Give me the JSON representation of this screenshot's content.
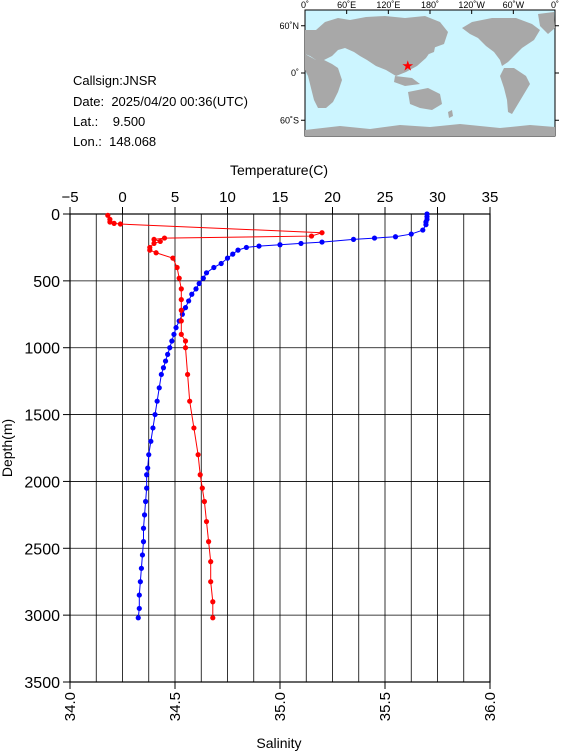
{
  "station": {
    "callsign_label": "Callsign:",
    "callsign": "JNSR",
    "date_label": "Date:",
    "date": "2025/04/20 00:36(UTC)",
    "lat_label": "Lat.:",
    "lat": "9.500",
    "lon_label": "Lon.:",
    "lon": "148.068"
  },
  "map": {
    "lon_ticks": [
      "0˚",
      "60˚E",
      "120˚E",
      "180˚",
      "120˚W",
      "60˚W",
      "0˚"
    ],
    "lat_ticks": [
      "60˚N",
      "0˚",
      "60˚S"
    ],
    "ocean_color": "#ccf5ff",
    "land_color": "#a8a8a8",
    "marker_color": "#ff0000",
    "marker_lat": 9.5,
    "marker_lon": 148.068
  },
  "chart_data": {
    "type": "scatter",
    "ylabel": "Depth(m)",
    "ylim": [
      0,
      3500
    ],
    "yticks": [
      0,
      500,
      1000,
      1500,
      2000,
      2500,
      3000,
      3500
    ],
    "y_inverted": true,
    "top_axis": {
      "label": "Temperature(C)",
      "range": [
        -5,
        35
      ],
      "ticks": [
        -5,
        0,
        5,
        10,
        15,
        20,
        25,
        30,
        35
      ]
    },
    "bottom_axis": {
      "label": "Salinity",
      "range": [
        34.0,
        36.0
      ],
      "ticks": [
        "34.0",
        "34.5",
        "35.0",
        "35.5",
        "36.0"
      ]
    },
    "grid": true,
    "series": [
      {
        "axis": "temperature",
        "color": "#0000ff",
        "points": [
          [
            29.0,
            0
          ],
          [
            29.0,
            20
          ],
          [
            29.0,
            40
          ],
          [
            28.9,
            60
          ],
          [
            28.9,
            80
          ],
          [
            28.6,
            120
          ],
          [
            27.5,
            150
          ],
          [
            26.0,
            170
          ],
          [
            24.0,
            180
          ],
          [
            22.0,
            190
          ],
          [
            19.0,
            210
          ],
          [
            17.0,
            220
          ],
          [
            15.0,
            230
          ],
          [
            13.0,
            240
          ],
          [
            11.8,
            250
          ],
          [
            11.0,
            270
          ],
          [
            10.5,
            300
          ],
          [
            10.0,
            330
          ],
          [
            9.4,
            370
          ],
          [
            8.7,
            400
          ],
          [
            8.0,
            440
          ],
          [
            7.7,
            480
          ],
          [
            7.3,
            520
          ],
          [
            7.0,
            560
          ],
          [
            6.6,
            600
          ],
          [
            6.3,
            650
          ],
          [
            6.0,
            700
          ],
          [
            5.7,
            750
          ],
          [
            5.4,
            800
          ],
          [
            5.1,
            850
          ],
          [
            4.9,
            900
          ],
          [
            4.7,
            950
          ],
          [
            4.5,
            1000
          ],
          [
            4.3,
            1050
          ],
          [
            4.1,
            1100
          ],
          [
            3.9,
            1150
          ],
          [
            3.7,
            1200
          ],
          [
            3.5,
            1300
          ],
          [
            3.3,
            1400
          ],
          [
            3.1,
            1500
          ],
          [
            2.9,
            1600
          ],
          [
            2.7,
            1700
          ],
          [
            2.5,
            1800
          ],
          [
            2.4,
            1900
          ],
          [
            2.3,
            1950
          ],
          [
            2.3,
            2050
          ],
          [
            2.2,
            2150
          ],
          [
            2.1,
            2250
          ],
          [
            2.0,
            2350
          ],
          [
            2.0,
            2450
          ],
          [
            1.9,
            2550
          ],
          [
            1.8,
            2650
          ],
          [
            1.7,
            2750
          ],
          [
            1.6,
            2850
          ],
          [
            1.6,
            2950
          ],
          [
            1.5,
            3020
          ]
        ]
      },
      {
        "axis": "salinity",
        "color": "#ff0000",
        "points": [
          [
            34.18,
            10
          ],
          [
            34.19,
            40
          ],
          [
            34.19,
            60
          ],
          [
            34.21,
            70
          ],
          [
            34.24,
            75
          ],
          [
            35.2,
            140
          ],
          [
            35.15,
            165
          ],
          [
            34.45,
            180
          ],
          [
            34.4,
            190
          ],
          [
            34.43,
            205
          ],
          [
            34.4,
            220
          ],
          [
            34.38,
            250
          ],
          [
            34.38,
            270
          ],
          [
            34.41,
            290
          ],
          [
            34.49,
            330
          ],
          [
            34.51,
            400
          ],
          [
            34.52,
            480
          ],
          [
            34.53,
            560
          ],
          [
            34.53,
            640
          ],
          [
            34.53,
            720
          ],
          [
            34.53,
            800
          ],
          [
            34.53,
            900
          ],
          [
            34.55,
            950
          ],
          [
            34.55,
            1000
          ],
          [
            34.56,
            1200
          ],
          [
            34.57,
            1400
          ],
          [
            34.59,
            1600
          ],
          [
            34.61,
            1800
          ],
          [
            34.62,
            1950
          ],
          [
            34.63,
            2050
          ],
          [
            34.64,
            2150
          ],
          [
            34.65,
            2300
          ],
          [
            34.66,
            2450
          ],
          [
            34.67,
            2600
          ],
          [
            34.67,
            2750
          ],
          [
            34.68,
            2900
          ],
          [
            34.68,
            3020
          ]
        ]
      }
    ]
  }
}
